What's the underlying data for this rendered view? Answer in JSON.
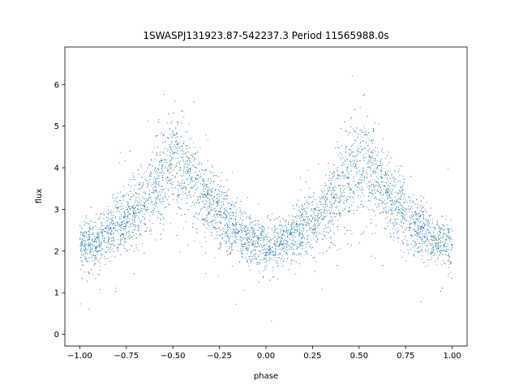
{
  "chart_data": {
    "type": "scatter",
    "title": "1SWASPJ131923.87-542237.3 Period 11565988.0s",
    "xlabel": "phase",
    "ylabel": "flux",
    "xlim": [
      -1.08,
      1.08
    ],
    "ylim": [
      -0.28,
      6.9
    ],
    "xticks": [
      -1.0,
      -0.75,
      -0.5,
      -0.25,
      0.0,
      0.25,
      0.5,
      0.75,
      1.0
    ],
    "xtick_labels": [
      "−1.00",
      "−0.75",
      "−0.50",
      "−0.25",
      "0.00",
      "0.25",
      "0.50",
      "0.75",
      "1.00"
    ],
    "yticks": [
      0,
      1,
      2,
      3,
      4,
      5,
      6
    ],
    "ytick_labels": [
      "0",
      "1",
      "2",
      "3",
      "4",
      "5",
      "6"
    ],
    "grid": false,
    "point_color": "#1f77b4",
    "phase_profile": {
      "x": [
        -1.0,
        -0.9,
        -0.8,
        -0.7,
        -0.6,
        -0.5,
        -0.4,
        -0.3,
        -0.2,
        -0.1,
        0.0,
        0.1,
        0.2,
        0.3,
        0.4,
        0.5,
        0.6,
        0.7,
        0.8,
        0.9,
        1.0
      ],
      "y": [
        2.1,
        2.2,
        2.6,
        2.9,
        3.5,
        4.1,
        3.7,
        3.1,
        2.6,
        2.3,
        2.1,
        2.2,
        2.6,
        2.9,
        3.5,
        4.1,
        3.7,
        3.1,
        2.6,
        2.3,
        2.1
      ],
      "spread": [
        0.3,
        0.3,
        0.35,
        0.4,
        0.55,
        0.65,
        0.55,
        0.45,
        0.35,
        0.3,
        0.3,
        0.3,
        0.35,
        0.4,
        0.55,
        0.65,
        0.55,
        0.45,
        0.35,
        0.3,
        0.3
      ]
    }
  }
}
